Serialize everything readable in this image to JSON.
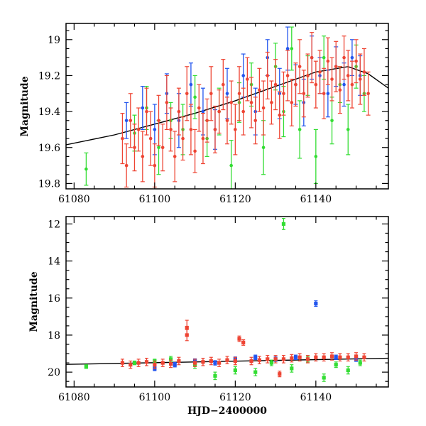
{
  "chart_data": [
    {
      "type": "scatter",
      "panel": "top",
      "ylabel": "Magnitude",
      "xlabel": "",
      "xlim": [
        61078,
        61158
      ],
      "ylim": [
        19.83,
        18.91
      ],
      "y_inverted": true,
      "xticks": [
        61080,
        61100,
        61120,
        61140
      ],
      "yticks": [
        19,
        19.2,
        19.4,
        19.6,
        19.8
      ],
      "model_curve": {
        "name": "model",
        "x": [
          61078,
          61090,
          61100,
          61110,
          61120,
          61130,
          61140,
          61148,
          61153,
          61158
        ],
        "y": [
          19.585,
          19.53,
          19.47,
          19.41,
          19.34,
          19.26,
          19.18,
          19.15,
          19.19,
          19.27
        ]
      },
      "series": [
        {
          "name": "green",
          "color": "#33dd33",
          "x": [
            61083,
            61095,
            61098,
            61101,
            61104,
            61107,
            61110,
            61113,
            61116,
            61119,
            61121,
            61124,
            61127,
            61130,
            61132,
            61134,
            61136,
            61138,
            61140,
            61142,
            61144,
            61146,
            61148,
            61150,
            61152
          ],
          "y": [
            19.72,
            19.52,
            19.38,
            19.6,
            19.45,
            19.5,
            19.32,
            19.55,
            19.4,
            19.7,
            19.35,
            19.25,
            19.6,
            19.15,
            19.4,
            19.05,
            19.5,
            19.2,
            19.65,
            19.1,
            19.45,
            19.25,
            19.5,
            19.15,
            19.3
          ],
          "err": [
            0.09,
            0.1,
            0.12,
            0.15,
            0.1,
            0.14,
            0.12,
            0.1,
            0.13,
            0.14,
            0.11,
            0.12,
            0.15,
            0.13,
            0.14,
            0.12,
            0.16,
            0.11,
            0.15,
            0.12,
            0.13,
            0.1,
            0.14,
            0.12,
            0.1
          ]
        },
        {
          "name": "blue",
          "color": "#2255ee",
          "x": [
            61093,
            61097,
            61100,
            61103,
            61106,
            61109,
            61112,
            61115,
            61118,
            61122,
            61125,
            61128,
            61131,
            61133,
            61135,
            61137,
            61139,
            61141,
            61143,
            61145,
            61147,
            61149,
            61151
          ],
          "y": [
            19.45,
            19.38,
            19.5,
            19.3,
            19.45,
            19.25,
            19.4,
            19.5,
            19.3,
            19.2,
            19.4,
            19.1,
            19.3,
            19.05,
            19.25,
            19.35,
            19.1,
            19.2,
            19.3,
            19.15,
            19.25,
            19.1,
            19.2
          ],
          "err": [
            0.1,
            0.12,
            0.14,
            0.11,
            0.15,
            0.12,
            0.13,
            0.11,
            0.14,
            0.12,
            0.13,
            0.1,
            0.14,
            0.12,
            0.11,
            0.13,
            0.12,
            0.1,
            0.13,
            0.11,
            0.12,
            0.1,
            0.11
          ]
        },
        {
          "name": "red",
          "color": "#ee4433",
          "x": [
            61092,
            61093,
            61094,
            61095,
            61096,
            61097,
            61098,
            61099,
            61100,
            61101,
            61102,
            61103,
            61104,
            61105,
            61106,
            61107,
            61108,
            61109,
            61110,
            61111,
            61112,
            61113,
            61114,
            61115,
            61116,
            61117,
            61118,
            61119,
            61120,
            61121,
            61122,
            61123,
            61124,
            61125,
            61126,
            61127,
            61128,
            61129,
            61130,
            61131,
            61132,
            61133,
            61134,
            61135,
            61136,
            61137,
            61138,
            61139,
            61140,
            61141,
            61142,
            61143,
            61144,
            61145,
            61146,
            61147,
            61148,
            61149,
            61150,
            61151,
            61152,
            61153
          ],
          "y": [
            19.55,
            19.7,
            19.45,
            19.6,
            19.5,
            19.65,
            19.4,
            19.55,
            19.7,
            19.45,
            19.6,
            19.35,
            19.5,
            19.65,
            19.4,
            19.55,
            19.3,
            19.5,
            19.62,
            19.38,
            19.55,
            19.45,
            19.3,
            19.5,
            19.4,
            19.25,
            19.45,
            19.35,
            19.5,
            19.3,
            19.4,
            19.22,
            19.35,
            19.45,
            19.28,
            19.38,
            19.2,
            19.35,
            19.25,
            19.42,
            19.3,
            19.2,
            19.35,
            19.25,
            19.15,
            19.3,
            19.2,
            19.1,
            19.25,
            19.18,
            19.3,
            19.12,
            19.22,
            19.15,
            19.28,
            19.1,
            19.2,
            19.25,
            19.12,
            19.22,
            19.18,
            19.3
          ],
          "err": [
            0.14,
            0.12,
            0.15,
            0.13,
            0.12,
            0.14,
            0.13,
            0.15,
            0.12,
            0.14,
            0.13,
            0.15,
            0.12,
            0.14,
            0.13,
            0.12,
            0.15,
            0.14,
            0.12,
            0.13,
            0.14,
            0.12,
            0.15,
            0.13,
            0.12,
            0.14,
            0.13,
            0.12,
            0.14,
            0.15,
            0.13,
            0.12,
            0.14,
            0.13,
            0.12,
            0.15,
            0.13,
            0.12,
            0.14,
            0.13,
            0.12,
            0.14,
            0.13,
            0.12,
            0.15,
            0.13,
            0.12,
            0.14,
            0.13,
            0.12,
            0.14,
            0.13,
            0.12,
            0.14,
            0.13,
            0.12,
            0.14,
            0.13,
            0.12,
            0.14,
            0.13,
            0.12
          ]
        }
      ]
    },
    {
      "type": "scatter",
      "panel": "bottom",
      "ylabel": "Magnitude",
      "xlabel": "HJD−2400000",
      "xlim": [
        61078,
        61158
      ],
      "ylim": [
        20.8,
        11.6
      ],
      "y_inverted": true,
      "xticks": [
        61080,
        61100,
        61120,
        61140
      ],
      "yticks": [
        12,
        14,
        16,
        18,
        20
      ],
      "model_curve": {
        "name": "model",
        "x": [
          61078,
          61158
        ],
        "y": [
          19.58,
          19.25
        ]
      },
      "series": [
        {
          "name": "green",
          "color": "#33dd33",
          "x": [
            61083,
            61095,
            61100,
            61104,
            61110,
            61115,
            61120,
            61125,
            61129,
            61132,
            61134,
            61138,
            61142,
            61145,
            61148,
            61151
          ],
          "y": [
            19.7,
            19.5,
            19.4,
            19.3,
            19.6,
            20.2,
            19.9,
            20.0,
            19.5,
            12.0,
            19.8,
            19.3,
            20.3,
            19.6,
            19.9,
            19.5
          ],
          "err": [
            0.1,
            0.1,
            0.1,
            0.15,
            0.2,
            0.2,
            0.2,
            0.2,
            0.15,
            0.3,
            0.2,
            0.15,
            0.2,
            0.15,
            0.2,
            0.15
          ]
        },
        {
          "name": "blue",
          "color": "#2255ee",
          "x": [
            61100,
            61105,
            61110,
            61115,
            61120,
            61125,
            61130,
            61135,
            61140,
            61145,
            61150
          ],
          "y": [
            19.8,
            19.6,
            19.4,
            19.5,
            19.3,
            19.2,
            19.3,
            19.2,
            16.3,
            19.2,
            19.3
          ],
          "err": [
            0.12,
            0.12,
            0.12,
            0.12,
            0.12,
            0.12,
            0.12,
            0.12,
            0.15,
            0.12,
            0.12
          ]
        },
        {
          "name": "red",
          "color": "#ee4433",
          "x": [
            61092,
            61094,
            61096,
            61098,
            61100,
            61102,
            61104,
            61106,
            61108,
            61108,
            61110,
            61112,
            61114,
            61116,
            61118,
            61120,
            61121,
            61122,
            61124,
            61126,
            61128,
            61130,
            61131,
            61132,
            61134,
            61136,
            61138,
            61140,
            61142,
            61144,
            61146,
            61148,
            61150,
            61152
          ],
          "y": [
            19.5,
            19.6,
            19.5,
            19.45,
            19.6,
            19.5,
            19.55,
            19.4,
            17.6,
            18.0,
            19.5,
            19.45,
            19.4,
            19.5,
            19.35,
            19.4,
            18.2,
            18.4,
            19.4,
            19.35,
            19.3,
            19.3,
            20.1,
            19.3,
            19.25,
            19.2,
            19.3,
            19.2,
            19.2,
            19.15,
            19.2,
            19.2,
            19.15,
            19.2
          ],
          "err": [
            0.2,
            0.2,
            0.2,
            0.2,
            0.2,
            0.2,
            0.2,
            0.2,
            0.4,
            0.3,
            0.2,
            0.2,
            0.2,
            0.2,
            0.2,
            0.2,
            0.15,
            0.15,
            0.2,
            0.2,
            0.2,
            0.2,
            0.15,
            0.2,
            0.2,
            0.2,
            0.2,
            0.2,
            0.2,
            0.2,
            0.2,
            0.2,
            0.2,
            0.2
          ]
        }
      ]
    }
  ]
}
